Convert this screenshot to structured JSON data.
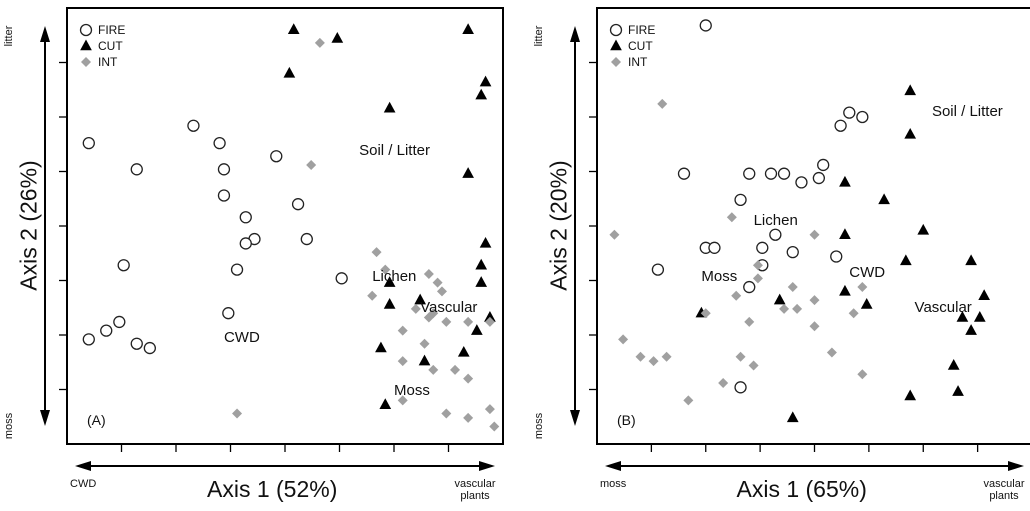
{
  "chart_data": [
    {
      "type": "scatter",
      "panel_label": "(A)",
      "xlabel": "Axis 1 (52%)",
      "ylabel": "Axis 2 (26%)",
      "x_axis_ends": {
        "left": "CWD",
        "right": "vascular plants"
      },
      "y_axis_ends": {
        "top": "litter",
        "bottom": "moss"
      },
      "xlim": [
        0,
        100
      ],
      "ylim": [
        0,
        100
      ],
      "legend": [
        "FIRE",
        "CUT",
        "INT"
      ],
      "legend_position": "top-left",
      "annotations": [
        {
          "text": "Soil / Litter",
          "x": 67,
          "y": 67
        },
        {
          "text": "Lichen",
          "x": 70,
          "y": 38
        },
        {
          "text": "Vascular",
          "x": 81,
          "y": 31
        },
        {
          "text": "CWD",
          "x": 36,
          "y": 24
        },
        {
          "text": "Moss",
          "x": 75,
          "y": 12
        }
      ],
      "series": [
        {
          "name": "FIRE",
          "marker": "open-circle",
          "color": "#222222",
          "points": [
            [
              5,
              69
            ],
            [
              16,
              63
            ],
            [
              13,
              41
            ],
            [
              5,
              24
            ],
            [
              9,
              26
            ],
            [
              12,
              28
            ],
            [
              16,
              23
            ],
            [
              19,
              22
            ],
            [
              29,
              73
            ],
            [
              35,
              69
            ],
            [
              36,
              63
            ],
            [
              36,
              57
            ],
            [
              41,
              52
            ],
            [
              43,
              47
            ],
            [
              41,
              46
            ],
            [
              39,
              40
            ],
            [
              48,
              66
            ],
            [
              53,
              55
            ],
            [
              55,
              47
            ],
            [
              37,
              30
            ],
            [
              63,
              38
            ]
          ]
        },
        {
          "name": "CUT",
          "marker": "filled-triangle",
          "color": "#000000",
          "points": [
            [
              52,
              95
            ],
            [
              51,
              85
            ],
            [
              62,
              93
            ],
            [
              74,
              77
            ],
            [
              92,
              95
            ],
            [
              95,
              80
            ],
            [
              96,
              83
            ],
            [
              92,
              62
            ],
            [
              74,
              37
            ],
            [
              74,
              32
            ],
            [
              81,
              33
            ],
            [
              96,
              46
            ],
            [
              95,
              41
            ],
            [
              95,
              37
            ],
            [
              97,
              29
            ],
            [
              94,
              26
            ],
            [
              72,
              22
            ],
            [
              82,
              19
            ],
            [
              91,
              21
            ],
            [
              73,
              9
            ]
          ]
        },
        {
          "name": "INT",
          "marker": "gray-diamond",
          "color": "#a0a0a0",
          "points": [
            [
              58,
              92
            ],
            [
              56,
              64
            ],
            [
              71,
              44
            ],
            [
              73,
              40
            ],
            [
              70,
              34
            ],
            [
              83,
              39
            ],
            [
              85,
              37
            ],
            [
              86,
              35
            ],
            [
              80,
              31
            ],
            [
              84,
              30
            ],
            [
              77,
              26
            ],
            [
              83,
              29
            ],
            [
              87,
              28
            ],
            [
              92,
              28
            ],
            [
              97,
              28
            ],
            [
              82,
              23
            ],
            [
              77,
              19
            ],
            [
              84,
              17
            ],
            [
              89,
              17
            ],
            [
              92,
              15
            ],
            [
              77,
              10
            ],
            [
              87,
              7
            ],
            [
              92,
              6
            ],
            [
              97,
              8
            ],
            [
              98,
              4
            ],
            [
              39,
              7
            ]
          ]
        }
      ]
    },
    {
      "type": "scatter",
      "panel_label": "(B)",
      "xlabel": "Axis 1 (65%)",
      "ylabel": "Axis 2 (20%)",
      "x_axis_ends": {
        "left": "moss",
        "right": "vascular plants"
      },
      "y_axis_ends": {
        "top": "litter",
        "bottom": "moss"
      },
      "xlim": [
        0,
        100
      ],
      "ylim": [
        0,
        100
      ],
      "legend": [
        "FIRE",
        "CUT",
        "INT"
      ],
      "legend_position": "top-left",
      "annotations": [
        {
          "text": "Soil / Litter",
          "x": 77,
          "y": 76
        },
        {
          "text": "Lichen",
          "x": 36,
          "y": 51
        },
        {
          "text": "CWD",
          "x": 58,
          "y": 39
        },
        {
          "text": "Moss",
          "x": 24,
          "y": 38
        },
        {
          "text": "Vascular",
          "x": 73,
          "y": 31
        }
      ],
      "series": [
        {
          "name": "FIRE",
          "marker": "open-circle",
          "color": "#222222",
          "points": [
            [
              25,
              96
            ],
            [
              58,
              76
            ],
            [
              56,
              73
            ],
            [
              61,
              75
            ],
            [
              20,
              62
            ],
            [
              35,
              62
            ],
            [
              40,
              62
            ],
            [
              43,
              62
            ],
            [
              47,
              60
            ],
            [
              51,
              61
            ],
            [
              52,
              64
            ],
            [
              33,
              56
            ],
            [
              41,
              48
            ],
            [
              25,
              45
            ],
            [
              27,
              45
            ],
            [
              14,
              40
            ],
            [
              38,
              41
            ],
            [
              38,
              45
            ],
            [
              45,
              44
            ],
            [
              55,
              43
            ],
            [
              35,
              36
            ],
            [
              33,
              13
            ]
          ]
        },
        {
          "name": "CUT",
          "marker": "filled-triangle",
          "color": "#000000",
          "points": [
            [
              72,
              81
            ],
            [
              72,
              71
            ],
            [
              57,
              60
            ],
            [
              66,
              56
            ],
            [
              57,
              48
            ],
            [
              75,
              49
            ],
            [
              71,
              42
            ],
            [
              86,
              42
            ],
            [
              57,
              35
            ],
            [
              62,
              32
            ],
            [
              42,
              33
            ],
            [
              24,
              30
            ],
            [
              89,
              34
            ],
            [
              84,
              29
            ],
            [
              88,
              29
            ],
            [
              86,
              26
            ],
            [
              82,
              18
            ],
            [
              72,
              11
            ],
            [
              83,
              12
            ],
            [
              45,
              6
            ]
          ]
        },
        {
          "name": "INT",
          "marker": "gray-diamond",
          "color": "#a0a0a0",
          "points": [
            [
              4,
              48
            ],
            [
              15,
              78
            ],
            [
              31,
              52
            ],
            [
              50,
              48
            ],
            [
              37,
              41
            ],
            [
              37,
              38
            ],
            [
              45,
              36
            ],
            [
              32,
              34
            ],
            [
              43,
              31
            ],
            [
              46,
              31
            ],
            [
              50,
              33
            ],
            [
              61,
              36
            ],
            [
              35,
              28
            ],
            [
              50,
              27
            ],
            [
              59,
              30
            ],
            [
              6,
              24
            ],
            [
              10,
              20
            ],
            [
              13,
              19
            ],
            [
              16,
              20
            ],
            [
              25,
              30
            ],
            [
              33,
              20
            ],
            [
              36,
              18
            ],
            [
              54,
              21
            ],
            [
              61,
              16
            ],
            [
              29,
              14
            ],
            [
              21,
              10
            ]
          ]
        }
      ]
    }
  ]
}
